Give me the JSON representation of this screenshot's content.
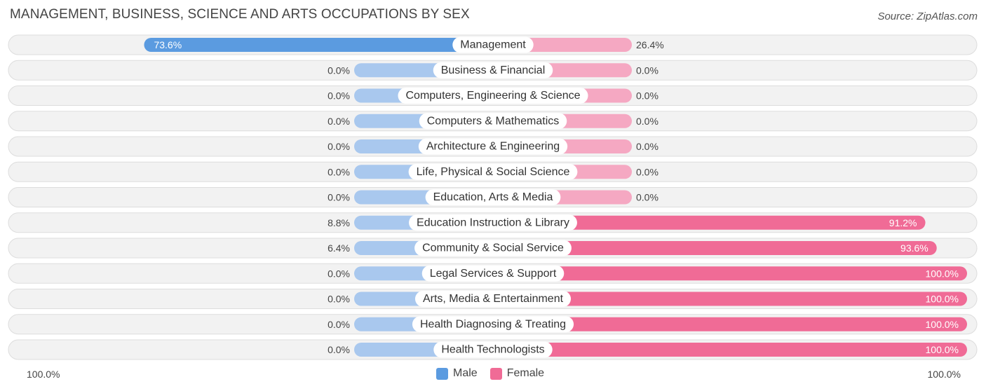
{
  "title": "MANAGEMENT, BUSINESS, SCIENCE AND ARTS OCCUPATIONS BY SEX",
  "source": "Source: ZipAtlas.com",
  "colors": {
    "male_strong": "#5b9be0",
    "male_light": "#a9c8ee",
    "female_strong": "#f06b96",
    "female_light": "#f5a8c2",
    "row_bg": "#f2f2f2",
    "row_border": "#dddddd"
  },
  "legend": {
    "male": "Male",
    "female": "Female"
  },
  "axis": {
    "left_label": "100.0%",
    "right_label": "100.0%"
  },
  "chart_data": {
    "type": "bar",
    "orientation": "horizontal-diverging",
    "title": "MANAGEMENT, BUSINESS, SCIENCE AND ARTS OCCUPATIONS BY SEX",
    "xlim": [
      -100,
      100
    ],
    "categories": [
      "Management",
      "Business & Financial",
      "Computers, Engineering & Science",
      "Computers & Mathematics",
      "Architecture & Engineering",
      "Life, Physical & Social Science",
      "Education, Arts & Media",
      "Education Instruction & Library",
      "Community & Social Service",
      "Legal Services & Support",
      "Arts, Media & Entertainment",
      "Health Diagnosing & Treating",
      "Health Technologists"
    ],
    "series": [
      {
        "name": "Male",
        "values": [
          73.6,
          0.0,
          0.0,
          0.0,
          0.0,
          0.0,
          0.0,
          8.8,
          6.4,
          0.0,
          0.0,
          0.0,
          0.0
        ],
        "labels": [
          "73.6%",
          "0.0%",
          "0.0%",
          "0.0%",
          "0.0%",
          "0.0%",
          "0.0%",
          "8.8%",
          "6.4%",
          "0.0%",
          "0.0%",
          "0.0%",
          "0.0%"
        ]
      },
      {
        "name": "Female",
        "values": [
          26.4,
          0.0,
          0.0,
          0.0,
          0.0,
          0.0,
          0.0,
          91.2,
          93.6,
          100.0,
          100.0,
          100.0,
          100.0
        ],
        "labels": [
          "26.4%",
          "0.0%",
          "0.0%",
          "0.0%",
          "0.0%",
          "0.0%",
          "0.0%",
          "91.2%",
          "93.6%",
          "100.0%",
          "100.0%",
          "100.0%",
          "100.0%"
        ]
      }
    ],
    "legend_position": "bottom-center"
  }
}
